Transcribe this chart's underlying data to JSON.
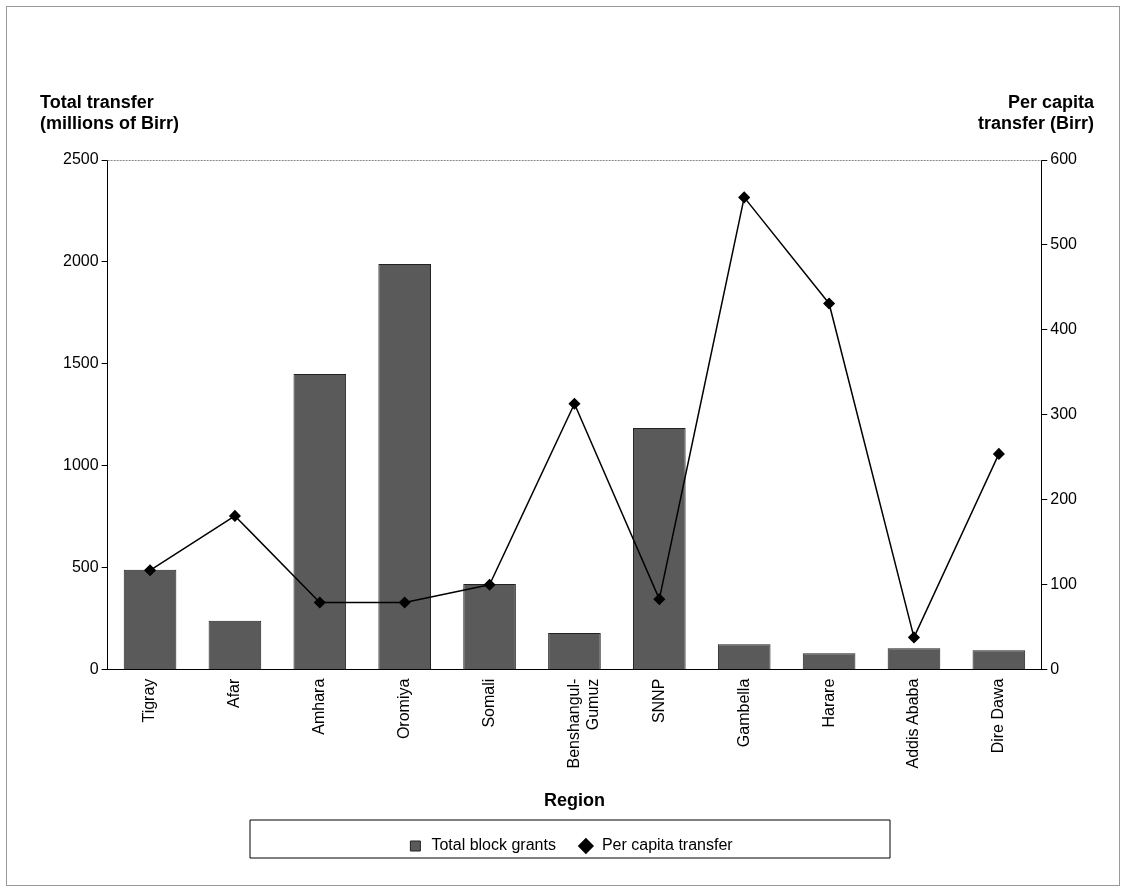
{
  "chart_data": {
    "type": "bar",
    "xlabel": "Region",
    "ylabel": "Total transfer (millions of Birr)",
    "y2label": "Per capita transfer (Birr)",
    "categories": [
      "Tigray",
      "Afar",
      "Amhara",
      "Oromiya",
      "Somali",
      "Benshangul-Gumuz",
      "SNNP",
      "Gambella",
      "Harare",
      "Addis Ababa",
      "Dire Dawa"
    ],
    "series": [
      {
        "name": "Total block grants",
        "color": "#5a5a5a",
        "values": [
          490,
          240,
          1450,
          1990,
          420,
          180,
          1185,
          125,
          80,
          105,
          95
        ]
      },
      {
        "name": "Per capita transfer",
        "type": "line",
        "axis": "y2",
        "color": "#000000",
        "values": [
          117,
          181,
          79,
          79,
          100,
          313,
          83,
          556,
          431,
          38,
          254
        ]
      }
    ],
    "ylim": [
      0,
      2500
    ],
    "yticks": [
      0,
      500,
      1000,
      1500,
      2000,
      2500
    ],
    "y2lim": [
      0,
      600
    ],
    "y2ticks": [
      0,
      100,
      200,
      300,
      400,
      500,
      600
    ],
    "grid": false,
    "legend": "bottom",
    "marker": "diamond"
  }
}
